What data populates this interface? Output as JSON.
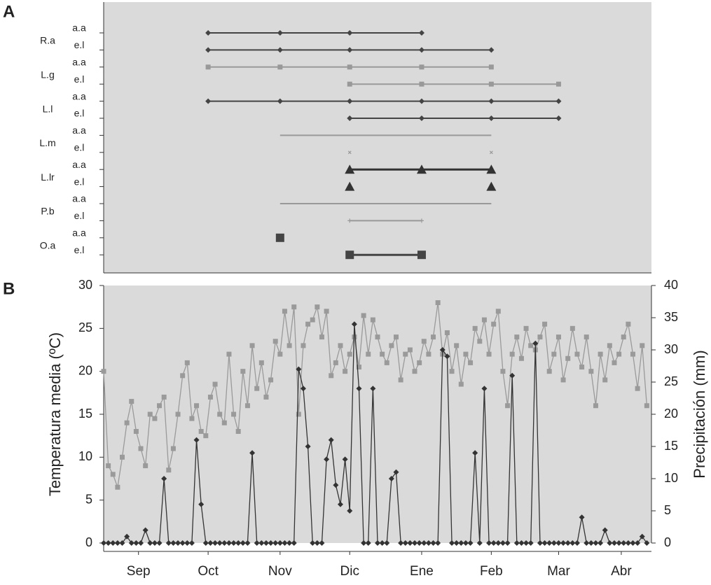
{
  "chart_data": [
    {
      "type": "timeline",
      "panel": "A",
      "xlim": [
        0,
        236
      ],
      "groups": [
        {
          "name": "R.a",
          "rows": [
            {
              "label": "a.a",
              "x": [
                45,
                76,
                106,
                137
              ],
              "line": true,
              "marker": "diamond",
              "color": "#444444"
            },
            {
              "label": "e.l",
              "x": [
                45,
                76,
                106,
                137,
                167
              ],
              "line": true,
              "marker": "diamond",
              "color": "#444444"
            }
          ]
        },
        {
          "name": "L.g",
          "rows": [
            {
              "label": "a.a",
              "x": [
                45,
                76,
                106,
                137,
                167
              ],
              "line": true,
              "marker": "square",
              "color": "#999999"
            },
            {
              "label": "e.l",
              "x": [
                106,
                137,
                167,
                196
              ],
              "line": true,
              "marker": "square",
              "color": "#999999"
            }
          ]
        },
        {
          "name": "L.l",
          "rows": [
            {
              "label": "a.a",
              "x": [
                45,
                76,
                106,
                137,
                167,
                196
              ],
              "line": true,
              "marker": "diamond",
              "color": "#444444"
            },
            {
              "label": "e.l",
              "x": [
                106,
                137,
                167,
                196
              ],
              "line": true,
              "marker": "diamond",
              "color": "#444444"
            }
          ]
        },
        {
          "name": "L.m",
          "rows": [
            {
              "label": "a.a",
              "x": [
                76,
                167
              ],
              "line": true,
              "marker": "none",
              "color": "#999999"
            },
            {
              "label": "e.l",
              "x": [
                106,
                167
              ],
              "line": false,
              "marker": "cross",
              "color": "#999999"
            }
          ]
        },
        {
          "name": "L.lr",
          "rows": [
            {
              "label": "a.a",
              "x": [
                106,
                137,
                167
              ],
              "line": true,
              "marker": "triangle",
              "color": "#333333"
            },
            {
              "label": "e.l",
              "x": [
                106,
                167
              ],
              "line": false,
              "marker": "triangle",
              "color": "#333333"
            }
          ]
        },
        {
          "name": "P.b",
          "rows": [
            {
              "label": "a.a",
              "x": [
                76,
                167
              ],
              "line": true,
              "marker": "none",
              "color": "#999999"
            },
            {
              "label": "e.l",
              "x": [
                106,
                137
              ],
              "line": true,
              "marker": "plus",
              "color": "#999999"
            }
          ]
        },
        {
          "name": "O.a",
          "rows": [
            {
              "label": "a.a",
              "x": [
                76
              ],
              "line": false,
              "marker": "bigsquare",
              "color": "#444444"
            },
            {
              "label": "e.l",
              "x": [
                106,
                137
              ],
              "line": true,
              "marker": "bigsquare",
              "color": "#444444"
            }
          ]
        }
      ]
    },
    {
      "type": "line",
      "panel": "B",
      "y_label": "Temperatura media (ºC)",
      "y2_label": "Precipitación (mm)",
      "xlim": [
        0,
        236
      ],
      "xticks": [
        {
          "value": 15,
          "label": "Sep"
        },
        {
          "value": 45,
          "label": "Oct"
        },
        {
          "value": 76,
          "label": "Nov"
        },
        {
          "value": 106,
          "label": "Dic"
        },
        {
          "value": 137,
          "label": "Ene"
        },
        {
          "value": 167,
          "label": "Feb"
        },
        {
          "value": 196,
          "label": "Mar"
        },
        {
          "value": 223,
          "label": "Abr"
        }
      ],
      "ylim": [
        0,
        30
      ],
      "yticks": [
        0,
        5,
        10,
        15,
        20,
        25,
        30
      ],
      "y2lim": [
        0,
        40
      ],
      "y2ticks": [
        0,
        5,
        10,
        15,
        20,
        25,
        30,
        35,
        40
      ],
      "x": [
        0,
        2,
        4,
        6,
        8,
        10,
        12,
        14,
        16,
        18,
        20,
        22,
        24,
        26,
        28,
        30,
        32,
        34,
        36,
        38,
        40,
        42,
        44,
        46,
        48,
        50,
        52,
        54,
        56,
        58,
        60,
        62,
        64,
        66,
        68,
        70,
        72,
        74,
        76,
        78,
        80,
        82,
        84,
        86,
        88,
        90,
        92,
        94,
        96,
        98,
        100,
        102,
        104,
        106,
        108,
        110,
        112,
        114,
        116,
        118,
        120,
        122,
        124,
        126,
        128,
        130,
        132,
        134,
        136,
        138,
        140,
        142,
        144,
        146,
        148,
        150,
        152,
        154,
        156,
        158,
        160,
        162,
        164,
        166,
        168,
        170,
        172,
        174,
        176,
        178,
        180,
        182,
        184,
        186,
        188,
        190,
        192,
        194,
        196,
        198,
        200,
        202,
        204,
        206,
        208,
        210,
        212,
        214,
        216,
        218,
        220,
        222,
        224,
        226,
        228,
        230,
        232,
        234
      ],
      "series": [
        {
          "name": "Temperatura media",
          "color": "#9a9a9a",
          "marker": "square",
          "values": [
            20,
            9,
            8,
            6.5,
            10,
            14,
            16.5,
            13,
            11,
            9,
            15,
            14.5,
            16,
            17,
            8.5,
            11,
            15,
            19.5,
            21,
            14.5,
            16,
            13,
            12.5,
            17,
            18.5,
            15,
            14,
            22,
            15,
            13,
            20,
            16,
            23,
            18,
            21,
            17,
            19,
            23.5,
            22,
            27,
            23,
            27.5,
            15,
            23,
            25.5,
            26,
            27.5,
            24,
            27,
            19.5,
            21,
            23,
            20,
            22,
            24,
            20.5,
            26.5,
            22,
            26,
            24,
            22,
            21,
            23,
            24,
            19,
            22,
            22.5,
            20,
            21,
            23.5,
            22,
            24,
            28,
            22,
            24.5,
            20,
            23,
            18.5,
            22,
            21,
            25,
            23.5,
            26,
            22,
            25.5,
            27,
            20,
            16,
            22,
            24,
            21.5,
            25,
            23,
            22.5,
            24,
            25.5,
            20,
            22,
            24,
            19,
            21.5,
            25,
            22,
            20.5,
            24,
            20,
            16,
            22,
            19,
            23,
            21,
            22,
            24,
            25.5,
            22,
            18,
            23,
            16
          ]
        },
        {
          "name": "Precipitación",
          "color": "#333333",
          "marker": "diamond",
          "axis": "y2",
          "values": [
            0,
            0,
            0,
            0,
            0,
            1,
            0,
            0,
            0,
            2,
            0,
            0,
            0,
            10,
            0,
            0,
            0,
            0,
            0,
            0,
            16,
            6,
            0,
            0,
            0,
            0,
            0,
            0,
            0,
            0,
            0,
            0,
            14,
            0,
            0,
            0,
            0,
            0,
            0,
            0,
            0,
            0,
            27,
            24,
            15,
            0,
            0,
            0,
            13,
            16,
            9,
            6,
            13,
            5,
            34,
            24,
            0,
            0,
            24,
            0,
            0,
            0,
            10,
            11,
            0,
            0,
            0,
            0,
            0,
            0,
            0,
            0,
            0,
            30,
            29,
            0,
            0,
            0,
            0,
            0,
            14,
            0,
            24,
            0,
            0,
            0,
            0,
            0,
            26,
            0,
            0,
            0,
            0,
            31,
            0,
            0,
            0,
            0,
            0,
            0,
            0,
            0,
            0,
            4,
            0,
            0,
            0,
            0,
            2,
            0,
            0,
            0,
            0,
            0,
            0,
            0,
            1,
            0
          ]
        }
      ]
    }
  ]
}
